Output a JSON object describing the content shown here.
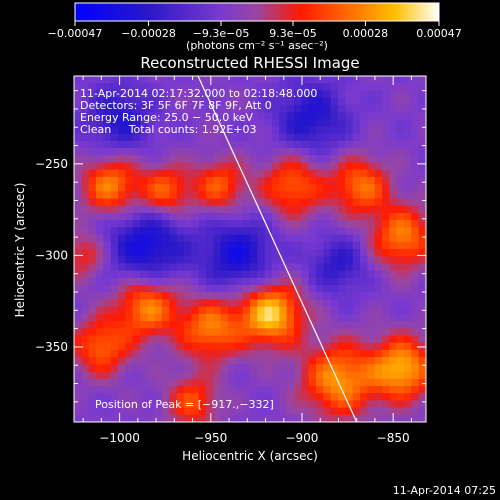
{
  "chart_data": {
    "type": "heatmap",
    "title": "Reconstructed RHESSI Image",
    "xlabel": "Heliocentric X (arcsec)",
    "ylabel": "Heliocentric Y (arcsec)",
    "xlim": [
      -1025,
      -832
    ],
    "ylim": [
      -391,
      -202
    ],
    "x_ticks": [
      -1000,
      -950,
      -900,
      -850
    ],
    "x_tick_labels": [
      "−1000",
      "−950",
      "−900",
      "−850"
    ],
    "y_ticks": [
      -250,
      -300,
      -350
    ],
    "y_tick_labels": [
      "−250",
      "−300",
      "−350"
    ],
    "colorbar": {
      "min": -0.00047,
      "max": 0.00047,
      "ticks": [
        -0.00047,
        -0.00028,
        -9.3e-05,
        9.3e-05,
        0.00028,
        0.00047
      ],
      "tick_labels": [
        "−0.00047",
        "−0.00028",
        "−9.3e−05",
        "9.3e−05",
        "0.00028",
        "0.00047"
      ],
      "unit_label": "(photons cm⁻² s⁻¹ asec⁻²)"
    },
    "annotations": {
      "time_range": "11-Apr-2014 02:17:32.000 to 02:18:48.000",
      "detectors": "Detectors: 3F 5F 6F 7F 8F 9F, Att 0",
      "energy": "Energy Range: 25.0 − 50.0 keV",
      "method": "Clean     Total counts: 1.92E+03",
      "peak": "Position of Peak = [−917.,−332]"
    },
    "peak_position": [
      -917,
      -332
    ],
    "limb_line": [
      [
        -957,
        -202
      ],
      [
        -870,
        -391
      ]
    ],
    "grid": false,
    "emission_blobs": [
      {
        "x": -917,
        "y": -332,
        "amp": 0.00047,
        "sigma": 12
      },
      {
        "x": -950,
        "y": -340,
        "amp": 0.00034,
        "sigma": 12
      },
      {
        "x": -985,
        "y": -328,
        "amp": 0.00036,
        "sigma": 12
      },
      {
        "x": -1010,
        "y": -350,
        "amp": 0.0003,
        "sigma": 11
      },
      {
        "x": -880,
        "y": -368,
        "amp": 0.00038,
        "sigma": 14
      },
      {
        "x": -845,
        "y": -362,
        "amp": 0.00042,
        "sigma": 12
      },
      {
        "x": -960,
        "y": -380,
        "amp": 0.00026,
        "sigma": 10
      },
      {
        "x": -1005,
        "y": -262,
        "amp": 0.00035,
        "sigma": 11
      },
      {
        "x": -975,
        "y": -265,
        "amp": 0.0003,
        "sigma": 10
      },
      {
        "x": -945,
        "y": -262,
        "amp": 0.00028,
        "sigma": 10
      },
      {
        "x": -905,
        "y": -262,
        "amp": 0.0003,
        "sigma": 12
      },
      {
        "x": -868,
        "y": -262,
        "amp": 0.00032,
        "sigma": 11
      },
      {
        "x": -845,
        "y": -290,
        "amp": 0.00034,
        "sigma": 12
      },
      {
        "x": -1020,
        "y": -300,
        "amp": 0.0002,
        "sigma": 9
      }
    ],
    "negative_blobs": [
      {
        "x": -985,
        "y": -295,
        "amp": -0.0003,
        "sigma": 15
      },
      {
        "x": -935,
        "y": -300,
        "amp": -0.00028,
        "sigma": 14
      },
      {
        "x": -895,
        "y": -225,
        "amp": -0.00024,
        "sigma": 14
      },
      {
        "x": -1000,
        "y": -225,
        "amp": -0.00022,
        "sigma": 13
      },
      {
        "x": -880,
        "y": -305,
        "amp": -0.0002,
        "sigma": 11
      }
    ],
    "timestamp": "11-Apr-2014 07:25"
  }
}
